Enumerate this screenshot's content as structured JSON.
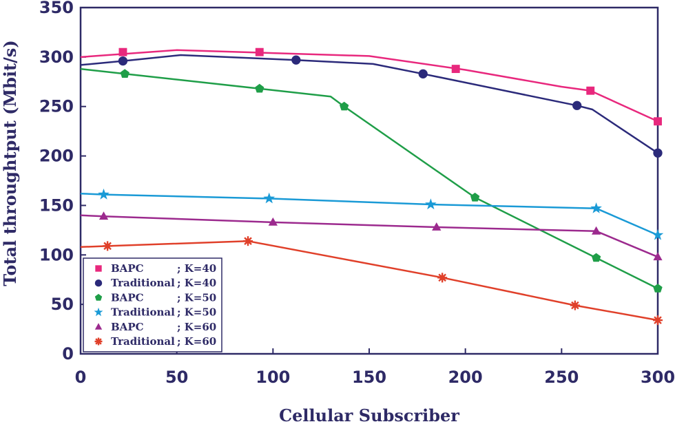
{
  "chart_data": {
    "type": "line",
    "title": "",
    "xlabel": "Cellular Subscriber",
    "ylabel": "Total throughtput (Mbit/s)",
    "xlim": [
      0,
      300
    ],
    "ylim": [
      0,
      350
    ],
    "xticks": [
      0,
      50,
      100,
      150,
      200,
      250,
      300
    ],
    "yticks": [
      0,
      50,
      100,
      150,
      200,
      250,
      300,
      350
    ],
    "grid": false,
    "legend_position": "bottom-left",
    "series": [
      {
        "name": "BAPC ; K=40",
        "legend_name": "BAPC",
        "legend_k": "; K=40",
        "color": "#e8287d",
        "marker": "square",
        "line": [
          [
            0,
            300
          ],
          [
            50,
            307
          ],
          [
            100,
            304
          ],
          [
            150,
            301
          ],
          [
            200,
            287
          ],
          [
            250,
            270
          ],
          [
            265,
            266
          ],
          [
            300,
            235
          ]
        ],
        "markers": [
          [
            22,
            305
          ],
          [
            93,
            305
          ],
          [
            195,
            288
          ],
          [
            265,
            266
          ],
          [
            300,
            235
          ]
        ]
      },
      {
        "name": "Traditional; K=40",
        "legend_name": "Traditional",
        "legend_k": "; K=40",
        "color": "#2b2a7a",
        "marker": "circle",
        "line": [
          [
            0,
            292
          ],
          [
            22,
            296
          ],
          [
            52,
            302
          ],
          [
            112,
            297
          ],
          [
            152,
            293
          ],
          [
            178,
            283
          ],
          [
            258,
            251
          ],
          [
            266,
            247
          ],
          [
            300,
            203
          ]
        ],
        "markers": [
          [
            22,
            296
          ],
          [
            112,
            297
          ],
          [
            178,
            283
          ],
          [
            258,
            251
          ],
          [
            300,
            203
          ]
        ]
      },
      {
        "name": "BAPC ; K=50",
        "legend_name": "BAPC",
        "legend_k": "; K=50",
        "color": "#1f9e48",
        "marker": "pentagon",
        "line": [
          [
            0,
            288
          ],
          [
            23,
            283
          ],
          [
            93,
            268
          ],
          [
            130,
            260
          ],
          [
            137,
            250
          ],
          [
            205,
            158
          ],
          [
            268,
            97
          ],
          [
            300,
            66
          ]
        ],
        "markers": [
          [
            23,
            283
          ],
          [
            93,
            268
          ],
          [
            137,
            250
          ],
          [
            205,
            158
          ],
          [
            268,
            97
          ],
          [
            300,
            66
          ]
        ]
      },
      {
        "name": "Traditional; K=50",
        "legend_name": "Traditional",
        "legend_k": "; K=50",
        "color": "#1a9ad6",
        "marker": "star",
        "line": [
          [
            0,
            162
          ],
          [
            12,
            161
          ],
          [
            98,
            157
          ],
          [
            182,
            151
          ],
          [
            268,
            147
          ],
          [
            300,
            120
          ]
        ],
        "markers": [
          [
            12,
            161
          ],
          [
            98,
            157
          ],
          [
            182,
            151
          ],
          [
            268,
            147
          ],
          [
            300,
            120
          ]
        ]
      },
      {
        "name": "BAPC ; K=60",
        "legend_name": "BAPC",
        "legend_k": "; K=60",
        "color": "#9c2a8e",
        "marker": "triangle",
        "line": [
          [
            0,
            140
          ],
          [
            12,
            139
          ],
          [
            100,
            133
          ],
          [
            185,
            128
          ],
          [
            268,
            124
          ],
          [
            300,
            98
          ]
        ],
        "markers": [
          [
            12,
            139
          ],
          [
            100,
            133
          ],
          [
            185,
            128
          ],
          [
            268,
            124
          ],
          [
            300,
            98
          ]
        ]
      },
      {
        "name": "Traditional; K=60",
        "legend_name": "Traditional",
        "legend_k": "; K=60",
        "color": "#e0402a",
        "marker": "asterisk",
        "line": [
          [
            0,
            108
          ],
          [
            14,
            109
          ],
          [
            87,
            114
          ],
          [
            188,
            77
          ],
          [
            257,
            49
          ],
          [
            300,
            34
          ]
        ],
        "markers": [
          [
            14,
            109
          ],
          [
            87,
            114
          ],
          [
            188,
            77
          ],
          [
            257,
            49
          ],
          [
            300,
            34
          ]
        ]
      }
    ]
  }
}
